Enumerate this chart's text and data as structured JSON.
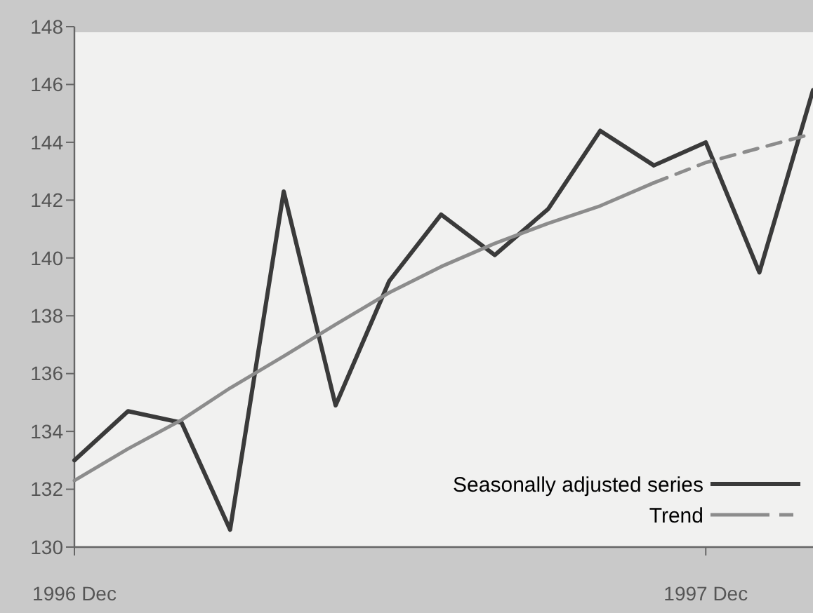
{
  "chart_data": {
    "type": "line",
    "x": [
      "1996-12",
      "1997-01",
      "1997-02",
      "1997-03",
      "1997-04",
      "1997-05",
      "1997-06",
      "1997-07",
      "1997-08",
      "1997-09",
      "1997-10",
      "1997-11",
      "1997-12",
      "1998-01",
      "1998-02"
    ],
    "series": [
      {
        "name": "Seasonally adjusted series",
        "color": "#3a3a3a",
        "values": [
          133.0,
          134.7,
          134.3,
          130.6,
          142.3,
          134.9,
          139.2,
          141.5,
          140.1,
          141.7,
          144.4,
          143.2,
          144.0,
          139.5,
          145.8
        ]
      },
      {
        "name": "Trend",
        "color": "#8c8c8c",
        "values": [
          132.3,
          133.4,
          134.4,
          135.5,
          136.6,
          137.7,
          138.8,
          139.7,
          140.5,
          141.2,
          141.8,
          142.6,
          null,
          null,
          null
        ]
      },
      {
        "color": "#8c8c8c",
        "line_style": "dashed",
        "x": [
          "1997-11",
          "1997-12",
          "1998-01",
          "1998-02"
        ],
        "values": [
          142.6,
          143.3,
          143.8,
          144.3
        ]
      }
    ],
    "xlim": [
      "1996-12",
      "1998-02"
    ],
    "xticks": [
      {
        "value": "1996-12",
        "label": "1996 Dec"
      },
      {
        "value": "1997-12",
        "label": "1997 Dec"
      }
    ],
    "ylim": [
      130,
      148
    ],
    "yticks": [
      130,
      132,
      134,
      136,
      138,
      140,
      142,
      144,
      146,
      148
    ],
    "grid": false,
    "legend": "bottom right",
    "line_style": "solid",
    "marker": "none"
  }
}
